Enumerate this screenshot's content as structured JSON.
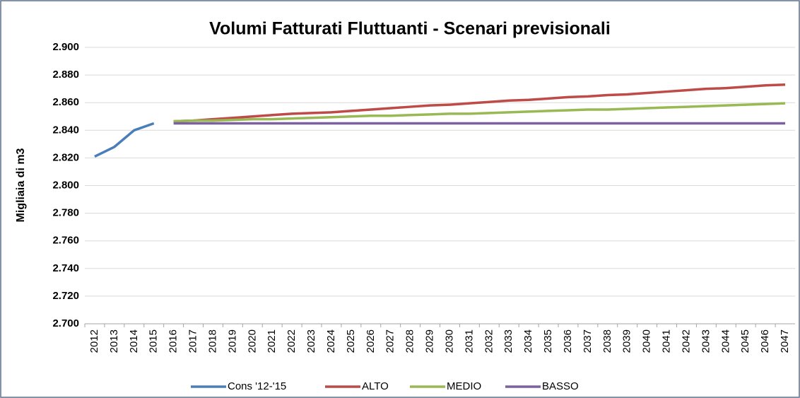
{
  "chart_data": {
    "type": "line",
    "title": "Volumi Fatturati Fluttuanti - Scenari previsionali",
    "y_label": "Migliaia di m3",
    "categories": [
      "2012",
      "2013",
      "2014",
      "2015",
      "2016",
      "2017",
      "2018",
      "2019",
      "2020",
      "2021",
      "2022",
      "2023",
      "2024",
      "2025",
      "2026",
      "2027",
      "2028",
      "2029",
      "2030",
      "2031",
      "2032",
      "2033",
      "2034",
      "2035",
      "2036",
      "2037",
      "2038",
      "2039",
      "2040",
      "2041",
      "2042",
      "2043",
      "2044",
      "2045",
      "2046",
      "2047"
    ],
    "series": [
      {
        "name": "Cons '12-'15",
        "color": "#4a7ebb",
        "values": [
          2821,
          2828,
          2840,
          2845,
          null,
          null,
          null,
          null,
          null,
          null,
          null,
          null,
          null,
          null,
          null,
          null,
          null,
          null,
          null,
          null,
          null,
          null,
          null,
          null,
          null,
          null,
          null,
          null,
          null,
          null,
          null,
          null,
          null,
          null,
          null,
          null
        ]
      },
      {
        "name": "ALTO",
        "color": "#be4b48",
        "values": [
          null,
          null,
          null,
          null,
          2846.5,
          2847,
          2848,
          2849,
          2850,
          2851,
          2852,
          2852.5,
          2853,
          2854,
          2855,
          2856,
          2857,
          2858,
          2858.5,
          2859.5,
          2860.5,
          2861.5,
          2862,
          2863,
          2864,
          2864.5,
          2865.5,
          2866,
          2867,
          2868,
          2869,
          2870,
          2870.5,
          2871.5,
          2872.5,
          2873
        ]
      },
      {
        "name": "MEDIO",
        "color": "#98b954",
        "values": [
          null,
          null,
          null,
          null,
          2846.5,
          2847,
          2847,
          2847.5,
          2848,
          2848,
          2848.5,
          2849,
          2849.5,
          2850,
          2850.5,
          2850.5,
          2851,
          2851.5,
          2852,
          2852,
          2852.5,
          2853,
          2853.5,
          2854,
          2854.5,
          2855,
          2855,
          2855.5,
          2856,
          2856.5,
          2857,
          2857.5,
          2858,
          2858.5,
          2859,
          2859.5
        ]
      },
      {
        "name": "BASSO",
        "color": "#7d60a0",
        "values": [
          null,
          null,
          null,
          null,
          2845,
          2845,
          2845,
          2845,
          2845,
          2845,
          2845,
          2845,
          2845,
          2845,
          2845,
          2845,
          2845,
          2845,
          2845,
          2845,
          2845,
          2845,
          2845,
          2845,
          2845,
          2845,
          2845,
          2845,
          2845,
          2845,
          2845,
          2845,
          2845,
          2845,
          2845,
          2845
        ]
      }
    ],
    "ylim": [
      2700,
      2900
    ],
    "yticks": [
      {
        "value": 2700,
        "label": "2.700"
      },
      {
        "value": 2720,
        "label": "2.720"
      },
      {
        "value": 2740,
        "label": "2.740"
      },
      {
        "value": 2760,
        "label": "2.760"
      },
      {
        "value": 2780,
        "label": "2.780"
      },
      {
        "value": 2800,
        "label": "2.800"
      },
      {
        "value": 2820,
        "label": "2.820"
      },
      {
        "value": 2840,
        "label": "2.840"
      },
      {
        "value": 2860,
        "label": "2.860"
      },
      {
        "value": 2880,
        "label": "2.880"
      },
      {
        "value": 2900,
        "label": "2.900"
      }
    ],
    "grid": true,
    "legend": "bottom"
  }
}
